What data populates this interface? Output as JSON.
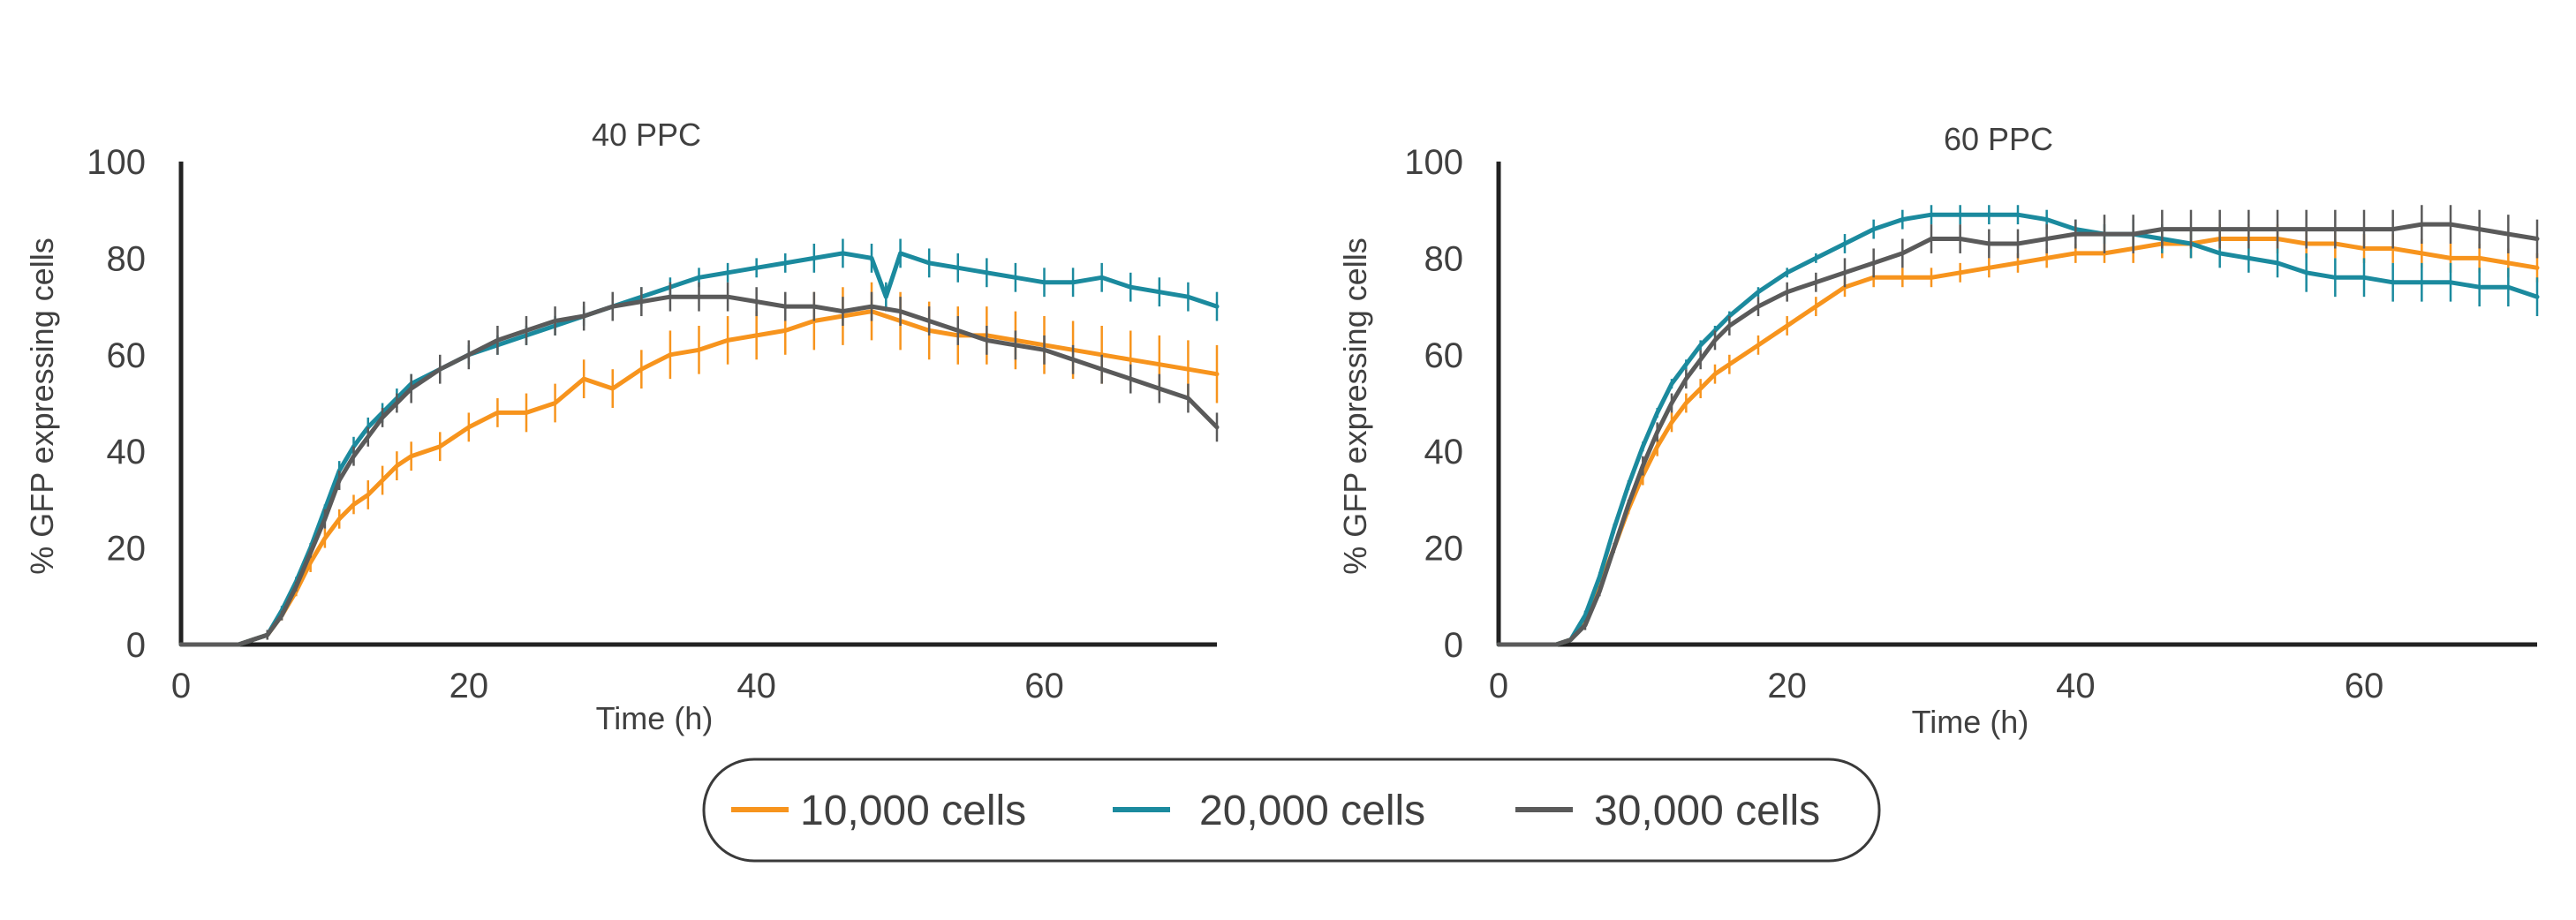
{
  "chart_data": [
    {
      "type": "line",
      "title": "40 PPC",
      "xlabel": "Time (h)",
      "ylabel": "% GFP expressing cells",
      "xlim": [
        0,
        72
      ],
      "ylim": [
        0,
        100
      ],
      "xticks": [
        "0",
        "20",
        "40",
        "60"
      ],
      "yticks": [
        "0",
        "20",
        "40",
        "60",
        "80",
        "100"
      ],
      "error_bars": true,
      "grid": false,
      "series": [
        {
          "name": "10,000 cells",
          "x": [
            0,
            2,
            4,
            5,
            6,
            7,
            8,
            9,
            10,
            11,
            12,
            13,
            14,
            15,
            16,
            18,
            20,
            22,
            24,
            26,
            28,
            30,
            32,
            34,
            36,
            38,
            40,
            42,
            44,
            46,
            48,
            50,
            52,
            54,
            56,
            58,
            60,
            62,
            64,
            66,
            68,
            70,
            72
          ],
          "y": [
            0,
            0,
            0,
            1,
            2,
            6,
            11,
            17,
            22,
            26,
            29,
            31,
            34,
            37,
            39,
            41,
            45,
            48,
            48,
            50,
            55,
            53,
            57,
            60,
            61,
            63,
            64,
            65,
            67,
            68,
            69,
            67,
            65,
            64,
            64,
            63,
            62,
            61,
            60,
            59,
            58,
            57,
            56
          ],
          "err": [
            0,
            0,
            0,
            0,
            1,
            1,
            1,
            2,
            2,
            2,
            2,
            3,
            3,
            3,
            3,
            3,
            3,
            3,
            4,
            4,
            4,
            4,
            4,
            5,
            5,
            5,
            5,
            5,
            6,
            6,
            6,
            6,
            6,
            6,
            6,
            6,
            6,
            6,
            6,
            6,
            6,
            6,
            6
          ]
        },
        {
          "name": "20,000 cells",
          "x": [
            0,
            2,
            4,
            5,
            6,
            7,
            8,
            9,
            10,
            11,
            12,
            13,
            14,
            15,
            16,
            18,
            20,
            22,
            24,
            26,
            28,
            30,
            32,
            34,
            36,
            38,
            40,
            42,
            44,
            46,
            48,
            49,
            50,
            52,
            54,
            56,
            58,
            60,
            62,
            64,
            66,
            68,
            70,
            72
          ],
          "y": [
            0,
            0,
            0,
            1,
            2,
            7,
            13,
            20,
            28,
            36,
            41,
            45,
            48,
            51,
            54,
            57,
            60,
            62,
            64,
            66,
            68,
            70,
            72,
            74,
            76,
            77,
            78,
            79,
            80,
            81,
            80,
            72,
            81,
            79,
            78,
            77,
            76,
            75,
            75,
            76,
            74,
            73,
            72,
            70
          ],
          "err": [
            0,
            0,
            0,
            0,
            1,
            1,
            1,
            1,
            1,
            2,
            2,
            2,
            2,
            2,
            2,
            2,
            2,
            2,
            2,
            2,
            2,
            2,
            2,
            2,
            2,
            2,
            2,
            2,
            3,
            3,
            3,
            3,
            3,
            3,
            3,
            3,
            3,
            3,
            3,
            3,
            3,
            3,
            3,
            3
          ]
        },
        {
          "name": "30,000 cells",
          "x": [
            0,
            2,
            4,
            5,
            6,
            7,
            8,
            9,
            10,
            11,
            12,
            13,
            14,
            15,
            16,
            18,
            20,
            22,
            24,
            26,
            28,
            30,
            32,
            34,
            36,
            38,
            40,
            42,
            44,
            46,
            48,
            50,
            52,
            54,
            56,
            58,
            60,
            62,
            64,
            66,
            68,
            70,
            72
          ],
          "y": [
            0,
            0,
            0,
            1,
            2,
            6,
            12,
            19,
            26,
            34,
            39,
            43,
            47,
            50,
            53,
            57,
            60,
            63,
            65,
            67,
            68,
            70,
            71,
            72,
            72,
            72,
            71,
            70,
            70,
            69,
            70,
            69,
            67,
            65,
            63,
            62,
            61,
            59,
            57,
            55,
            53,
            51,
            45
          ],
          "err": [
            0,
            0,
            0,
            0,
            1,
            1,
            1,
            1,
            2,
            2,
            2,
            2,
            2,
            2,
            3,
            3,
            3,
            3,
            3,
            3,
            3,
            3,
            3,
            3,
            3,
            3,
            3,
            3,
            3,
            3,
            3,
            3,
            3,
            3,
            3,
            3,
            3,
            3,
            3,
            3,
            3,
            3,
            3
          ]
        }
      ]
    },
    {
      "type": "line",
      "title": "60 PPC",
      "xlabel": "Time (h)",
      "ylabel": "% GFP expressing cells",
      "xlim": [
        0,
        72
      ],
      "ylim": [
        0,
        100
      ],
      "xticks": [
        "0",
        "20",
        "40",
        "60"
      ],
      "yticks": [
        "0",
        "20",
        "40",
        "60",
        "80",
        "100"
      ],
      "error_bars": true,
      "grid": false,
      "series": [
        {
          "name": "10,000 cells",
          "x": [
            0,
            2,
            4,
            5,
            6,
            7,
            8,
            9,
            10,
            11,
            12,
            13,
            14,
            15,
            16,
            18,
            20,
            22,
            24,
            26,
            28,
            30,
            32,
            34,
            36,
            38,
            40,
            42,
            44,
            46,
            48,
            50,
            52,
            54,
            56,
            58,
            60,
            62,
            64,
            66,
            68,
            70,
            72
          ],
          "y": [
            0,
            0,
            0,
            1,
            5,
            12,
            20,
            28,
            35,
            41,
            46,
            50,
            53,
            56,
            58,
            62,
            66,
            70,
            74,
            76,
            76,
            76,
            77,
            78,
            79,
            80,
            81,
            81,
            82,
            83,
            83,
            84,
            84,
            84,
            83,
            83,
            82,
            82,
            81,
            80,
            80,
            79,
            78
          ],
          "err": [
            0,
            0,
            0,
            0,
            1,
            1,
            1,
            1,
            2,
            2,
            2,
            2,
            2,
            2,
            2,
            2,
            2,
            2,
            2,
            2,
            2,
            2,
            2,
            2,
            2,
            2,
            2,
            2,
            3,
            3,
            3,
            3,
            3,
            3,
            3,
            3,
            3,
            3,
            3,
            3,
            3,
            3,
            3
          ]
        },
        {
          "name": "20,000 cells",
          "x": [
            0,
            2,
            4,
            5,
            6,
            7,
            8,
            9,
            10,
            11,
            12,
            13,
            14,
            15,
            16,
            18,
            20,
            22,
            24,
            26,
            28,
            30,
            32,
            34,
            36,
            38,
            40,
            42,
            44,
            46,
            48,
            50,
            52,
            54,
            56,
            58,
            60,
            62,
            64,
            66,
            68,
            70,
            72
          ],
          "y": [
            0,
            0,
            0,
            1,
            6,
            14,
            24,
            33,
            41,
            48,
            54,
            58,
            62,
            65,
            68,
            73,
            77,
            80,
            83,
            86,
            88,
            89,
            89,
            89,
            89,
            88,
            86,
            85,
            85,
            84,
            83,
            81,
            80,
            79,
            77,
            76,
            76,
            75,
            75,
            75,
            74,
            74,
            72
          ],
          "err": [
            0,
            0,
            0,
            0,
            1,
            1,
            1,
            1,
            1,
            1,
            1,
            1,
            1,
            1,
            1,
            1,
            1,
            1,
            2,
            2,
            2,
            2,
            2,
            2,
            2,
            2,
            2,
            2,
            3,
            3,
            3,
            3,
            3,
            3,
            4,
            4,
            4,
            4,
            4,
            4,
            4,
            4,
            4
          ]
        },
        {
          "name": "30,000 cells",
          "x": [
            0,
            2,
            4,
            5,
            6,
            7,
            8,
            9,
            10,
            11,
            12,
            13,
            14,
            15,
            16,
            18,
            20,
            22,
            24,
            26,
            28,
            30,
            32,
            34,
            36,
            38,
            40,
            42,
            44,
            46,
            48,
            50,
            52,
            54,
            56,
            58,
            60,
            62,
            64,
            66,
            68,
            70,
            72
          ],
          "y": [
            0,
            0,
            0,
            1,
            4,
            11,
            20,
            29,
            37,
            44,
            50,
            55,
            59,
            63,
            66,
            70,
            73,
            75,
            77,
            79,
            81,
            84,
            84,
            83,
            83,
            84,
            85,
            85,
            85,
            86,
            86,
            86,
            86,
            86,
            86,
            86,
            86,
            86,
            87,
            87,
            86,
            85,
            84
          ],
          "err": [
            0,
            0,
            0,
            0,
            1,
            1,
            1,
            1,
            2,
            2,
            2,
            2,
            2,
            2,
            2,
            2,
            2,
            2,
            3,
            3,
            3,
            3,
            3,
            3,
            3,
            3,
            3,
            4,
            4,
            4,
            4,
            4,
            4,
            4,
            4,
            4,
            4,
            4,
            4,
            4,
            4,
            4,
            4
          ]
        }
      ]
    }
  ],
  "legend": {
    "placement": "bottom-center",
    "items": [
      {
        "label": "10,000 cells",
        "color": "#F7941D"
      },
      {
        "label": "20,000 cells",
        "color": "#1B8A9E"
      },
      {
        "label": "30,000 cells",
        "color": "#5A5A5A"
      }
    ]
  },
  "colors": {
    "series": [
      "#F7941D",
      "#1B8A9E",
      "#5A5A5A"
    ],
    "axis": "#222222",
    "text": "#404040"
  }
}
